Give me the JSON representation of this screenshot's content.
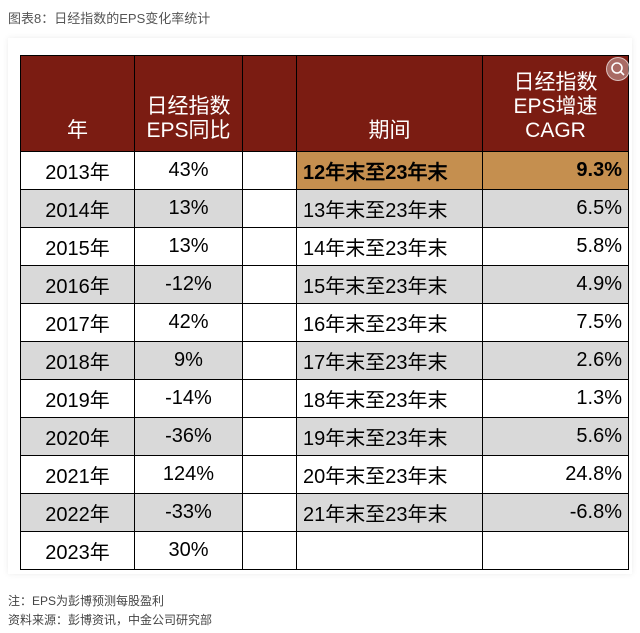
{
  "caption": "图表8：日经指数的EPS变化率统计",
  "headers": {
    "year": "年",
    "yoy_line1": "日经指数",
    "yoy_line2": "EPS同比",
    "period": "期间",
    "cagr_line1": "日经指数",
    "cagr_line2": "EPS增速",
    "cagr_line3": "CAGR"
  },
  "rows": [
    {
      "year": "2013年",
      "yoy": "43%",
      "period": "12年末至23年末",
      "cagr": "9.3%"
    },
    {
      "year": "2014年",
      "yoy": "13%",
      "period": "13年末至23年末",
      "cagr": "6.5%"
    },
    {
      "year": "2015年",
      "yoy": "13%",
      "period": "14年末至23年末",
      "cagr": "5.8%"
    },
    {
      "year": "2016年",
      "yoy": "-12%",
      "period": "15年末至23年末",
      "cagr": "4.9%"
    },
    {
      "year": "2017年",
      "yoy": "42%",
      "period": "16年末至23年末",
      "cagr": "7.5%"
    },
    {
      "year": "2018年",
      "yoy": "9%",
      "period": "17年末至23年末",
      "cagr": "2.6%"
    },
    {
      "year": "2019年",
      "yoy": "-14%",
      "period": "18年末至23年末",
      "cagr": "1.3%"
    },
    {
      "year": "2020年",
      "yoy": "-36%",
      "period": "19年末至23年末",
      "cagr": "5.6%"
    },
    {
      "year": "2021年",
      "yoy": "124%",
      "period": "20年末至23年末",
      "cagr": "24.8%"
    },
    {
      "year": "2022年",
      "yoy": "-33%",
      "period": "21年末至23年末",
      "cagr": "-6.8%"
    },
    {
      "year": "2023年",
      "yoy": "30%",
      "period": "",
      "cagr": ""
    }
  ],
  "footnotes": {
    "note": "注：EPS为彭博预测每股盈利",
    "source": "资料来源：彭博资讯，中金公司研究部"
  },
  "colors": {
    "header_bg": "#7b1c12",
    "highlight_bg": "#c58f4f",
    "alt_row_bg": "#d9d9d9"
  },
  "icons": {
    "corner": "lens-icon"
  }
}
